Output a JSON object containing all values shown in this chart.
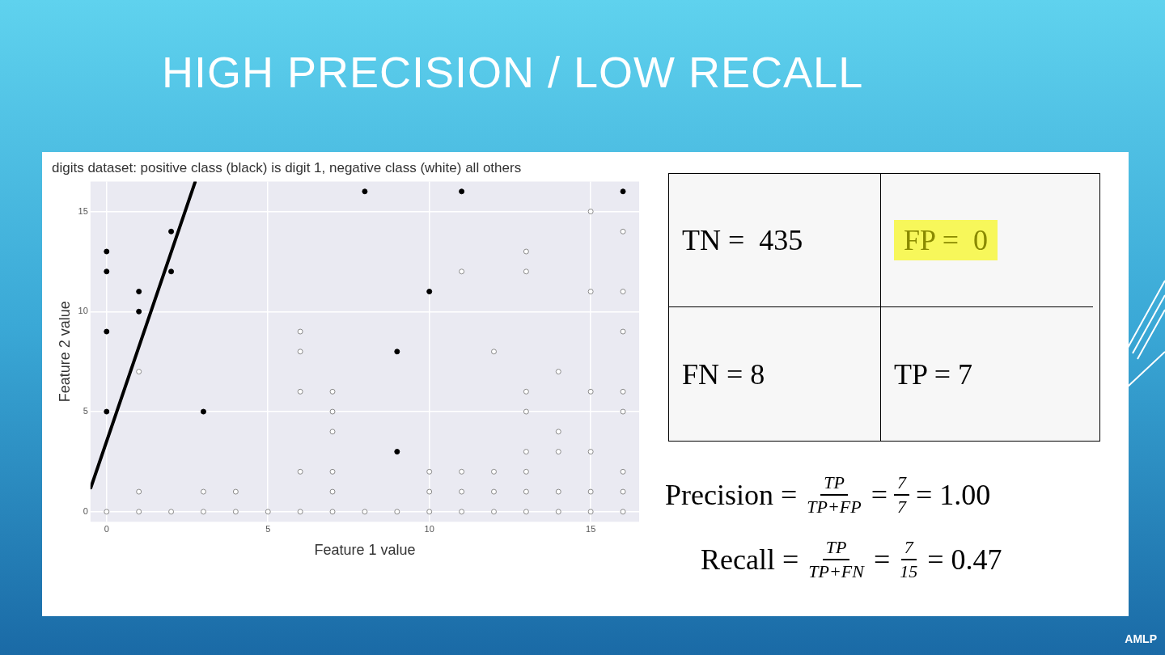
{
  "chart_data": [
    {
      "type": "scatter",
      "title": "HIGH PRECISION / LOW RECALL",
      "subtitle": "digits dataset: positive class (black) is digit 1, negative class (white) all others",
      "xlabel": "Feature 1 value",
      "ylabel": "Feature 2 value",
      "xlim": [
        -0.5,
        16.5
      ],
      "ylim": [
        -0.5,
        16.5
      ],
      "xticks": [
        0,
        5,
        10,
        15
      ],
      "yticks": [
        0,
        5,
        10,
        15
      ],
      "grid": true,
      "legend": false,
      "marker": "circle",
      "series": [
        {
          "color": "#ffffff",
          "x": [
            0,
            1,
            2,
            3,
            4,
            5,
            6,
            7,
            8,
            9,
            10,
            11,
            12,
            13,
            14,
            15,
            16,
            1,
            3,
            4,
            1,
            6,
            6,
            6,
            6,
            7,
            7,
            7,
            7,
            7,
            11,
            13,
            13,
            15,
            16,
            15,
            16,
            16,
            12,
            14,
            13,
            15,
            16,
            13,
            16,
            14,
            13,
            14,
            15,
            10,
            11,
            12,
            13,
            16,
            10,
            11,
            12,
            13,
            14,
            15,
            16
          ],
          "values": [
            0,
            0,
            0,
            0,
            0,
            0,
            0,
            0,
            0,
            0,
            0,
            0,
            0,
            0,
            0,
            0,
            0,
            1,
            1,
            1,
            7,
            9,
            8,
            6,
            2,
            6,
            5,
            4,
            2,
            1,
            12,
            13,
            12,
            15,
            14,
            11,
            11,
            9,
            8,
            7,
            6,
            6,
            6,
            5,
            5,
            4,
            3,
            3,
            3,
            2,
            2,
            2,
            2,
            2,
            1,
            1,
            1,
            1,
            1,
            1,
            1
          ]
        },
        {
          "color": "#000000",
          "x": [
            0,
            0,
            0,
            0,
            1,
            1,
            2,
            2,
            3,
            8,
            9,
            9,
            10,
            11,
            16
          ],
          "values": [
            13,
            12,
            9,
            5,
            11,
            10,
            14,
            12,
            5,
            16,
            8,
            3,
            11,
            16,
            16
          ]
        },
        {
          "type": "line",
          "color": "#000000",
          "marker": "none",
          "line_style": "solid",
          "x": [
            -0.49,
            2.74
          ],
          "values": [
            1.2,
            16.46
          ]
        }
      ]
    },
    {
      "type": "other",
      "annotations": [
        "TN =  435",
        "FP =  0",
        "FN = 8",
        "TP = 7",
        "Precision =",
        "TP",
        "TP+FP",
        "=",
        "7",
        "7",
        "= 1.00",
        "Recall =",
        "TP",
        "TP+FN",
        "=",
        "7",
        "15",
        "= 0.47",
        "AMLP"
      ]
    }
  ]
}
